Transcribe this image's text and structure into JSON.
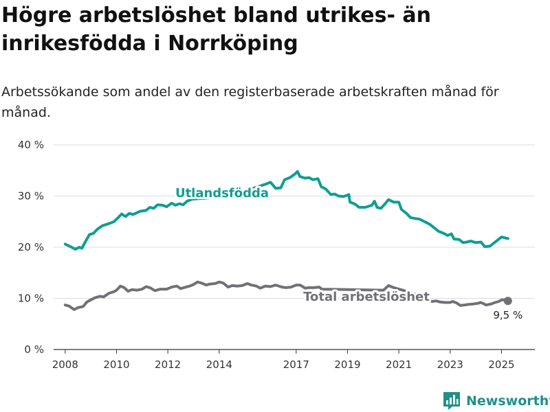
{
  "title": "Högre arbetslöshet bland utrikes- än inrikesfödda i Norrköping",
  "subtitle": "Arbetssökande som andel av den registerbaserade arbetskraften månad för månad.",
  "brand": {
    "name": "Newsworthy",
    "icon": "newsworthy-logo-icon"
  },
  "colors": {
    "utlandsfodda": "#0f9e92",
    "total": "#727076",
    "grid": "#dcdcdc",
    "axis": "#333333"
  },
  "chart_data": {
    "type": "line",
    "title": "Högre arbetslöshet bland utrikes- än inrikesfödda i Norrköping",
    "subtitle": "Arbetssökande som andel av den registerbaserade arbetskraften månad för månad.",
    "xlabel": "",
    "ylabel": "",
    "xlim": [
      2007.55,
      2026.3
    ],
    "ylim": [
      0,
      40
    ],
    "x_ticks": [
      "2008",
      "2010",
      "2012",
      "2014",
      "2017",
      "2019",
      "2021",
      "2023",
      "2025"
    ],
    "y_ticks": [
      "0 %",
      "10 %",
      "20 %",
      "30 %",
      "40 %"
    ],
    "grid": true,
    "legend": "direct labels",
    "series": [
      {
        "name": "Utlandsfödda",
        "color": "#0f9e92",
        "points": [
          [
            2008.0,
            20.6
          ],
          [
            2008.25,
            20.0
          ],
          [
            2008.4,
            19.6
          ],
          [
            2008.55,
            20.0
          ],
          [
            2008.65,
            19.8
          ],
          [
            2008.8,
            21.2
          ],
          [
            2008.95,
            22.5
          ],
          [
            2009.1,
            22.7
          ],
          [
            2009.25,
            23.5
          ],
          [
            2009.45,
            24.2
          ],
          [
            2009.7,
            24.6
          ],
          [
            2009.9,
            25.0
          ],
          [
            2010.05,
            25.7
          ],
          [
            2010.2,
            26.5
          ],
          [
            2010.35,
            26.0
          ],
          [
            2010.5,
            26.6
          ],
          [
            2010.65,
            26.4
          ],
          [
            2010.9,
            27.0
          ],
          [
            2011.15,
            27.2
          ],
          [
            2011.3,
            27.8
          ],
          [
            2011.45,
            27.6
          ],
          [
            2011.6,
            28.3
          ],
          [
            2011.8,
            28.2
          ],
          [
            2011.95,
            27.9
          ],
          [
            2012.15,
            28.6
          ],
          [
            2012.3,
            28.2
          ],
          [
            2012.45,
            28.5
          ],
          [
            2012.6,
            28.3
          ],
          [
            2012.75,
            29.0
          ],
          [
            2012.95,
            29.4
          ],
          [
            2013.5,
            29.6
          ],
          [
            2014.0,
            30.0
          ],
          [
            2015.0,
            31.0
          ],
          [
            2015.5,
            31.8
          ],
          [
            2015.85,
            32.4
          ],
          [
            2016.0,
            32.7
          ],
          [
            2016.2,
            31.5
          ],
          [
            2016.4,
            31.6
          ],
          [
            2016.55,
            33.2
          ],
          [
            2016.75,
            33.6
          ],
          [
            2016.95,
            34.3
          ],
          [
            2017.05,
            34.8
          ],
          [
            2017.15,
            33.8
          ],
          [
            2017.35,
            33.5
          ],
          [
            2017.5,
            33.6
          ],
          [
            2017.65,
            33.2
          ],
          [
            2017.85,
            33.4
          ],
          [
            2017.98,
            31.8
          ],
          [
            2018.15,
            31.4
          ],
          [
            2018.35,
            30.3
          ],
          [
            2018.5,
            30.4
          ],
          [
            2018.65,
            30.0
          ],
          [
            2018.85,
            29.9
          ],
          [
            2019.05,
            30.3
          ],
          [
            2019.1,
            28.8
          ],
          [
            2019.3,
            28.4
          ],
          [
            2019.45,
            27.8
          ],
          [
            2019.7,
            27.8
          ],
          [
            2019.95,
            28.2
          ],
          [
            2020.05,
            29.0
          ],
          [
            2020.15,
            27.8
          ],
          [
            2020.3,
            27.6
          ],
          [
            2020.45,
            28.4
          ],
          [
            2020.6,
            29.3
          ],
          [
            2020.8,
            28.8
          ],
          [
            2021.0,
            28.8
          ],
          [
            2021.1,
            27.4
          ],
          [
            2021.3,
            26.6
          ],
          [
            2021.45,
            25.8
          ],
          [
            2021.65,
            25.6
          ],
          [
            2021.8,
            25.5
          ],
          [
            2022.0,
            25.0
          ],
          [
            2022.2,
            24.5
          ],
          [
            2022.4,
            23.7
          ],
          [
            2022.55,
            23.1
          ],
          [
            2022.75,
            22.7
          ],
          [
            2022.9,
            22.3
          ],
          [
            2023.05,
            22.6
          ],
          [
            2023.15,
            21.6
          ],
          [
            2023.35,
            21.5
          ],
          [
            2023.5,
            20.9
          ],
          [
            2023.65,
            21.0
          ],
          [
            2023.8,
            21.2
          ],
          [
            2024.0,
            20.9
          ],
          [
            2024.2,
            21.0
          ],
          [
            2024.35,
            20.1
          ],
          [
            2024.55,
            20.2
          ],
          [
            2024.7,
            20.8
          ],
          [
            2024.85,
            21.4
          ],
          [
            2025.0,
            22.0
          ],
          [
            2025.15,
            21.8
          ],
          [
            2025.25,
            21.7
          ]
        ]
      },
      {
        "name": "Total arbetslöshet",
        "color": "#727076",
        "points": [
          [
            2008.0,
            8.7
          ],
          [
            2008.15,
            8.5
          ],
          [
            2008.35,
            7.8
          ],
          [
            2008.5,
            8.2
          ],
          [
            2008.7,
            8.4
          ],
          [
            2008.85,
            9.3
          ],
          [
            2009.0,
            9.7
          ],
          [
            2009.15,
            10.1
          ],
          [
            2009.35,
            10.4
          ],
          [
            2009.5,
            10.3
          ],
          [
            2009.7,
            11.0
          ],
          [
            2009.9,
            11.3
          ],
          [
            2010.0,
            11.6
          ],
          [
            2010.15,
            12.4
          ],
          [
            2010.3,
            12.1
          ],
          [
            2010.45,
            11.4
          ],
          [
            2010.6,
            11.7
          ],
          [
            2010.8,
            11.6
          ],
          [
            2011.0,
            11.8
          ],
          [
            2011.15,
            12.3
          ],
          [
            2011.3,
            12.1
          ],
          [
            2011.5,
            11.5
          ],
          [
            2011.7,
            11.8
          ],
          [
            2011.95,
            11.8
          ],
          [
            2012.15,
            12.2
          ],
          [
            2012.35,
            12.4
          ],
          [
            2012.5,
            11.9
          ],
          [
            2012.7,
            12.2
          ],
          [
            2012.85,
            12.4
          ],
          [
            2013.0,
            12.7
          ],
          [
            2013.15,
            13.2
          ],
          [
            2013.3,
            13.0
          ],
          [
            2013.5,
            12.6
          ],
          [
            2013.65,
            12.8
          ],
          [
            2013.85,
            12.9
          ],
          [
            2014.0,
            13.2
          ],
          [
            2014.15,
            13.0
          ],
          [
            2014.35,
            12.2
          ],
          [
            2014.5,
            12.5
          ],
          [
            2014.7,
            12.4
          ],
          [
            2014.9,
            12.5
          ],
          [
            2015.1,
            12.9
          ],
          [
            2015.25,
            12.6
          ],
          [
            2015.45,
            12.4
          ],
          [
            2015.6,
            12.0
          ],
          [
            2015.8,
            12.4
          ],
          [
            2016.0,
            12.3
          ],
          [
            2016.2,
            12.6
          ],
          [
            2016.45,
            12.2
          ],
          [
            2016.6,
            12.1
          ],
          [
            2016.8,
            12.2
          ],
          [
            2017.0,
            12.6
          ],
          [
            2017.15,
            12.6
          ],
          [
            2017.35,
            12.0
          ],
          [
            2017.5,
            12.1
          ],
          [
            2017.7,
            12.1
          ],
          [
            2017.9,
            12.2
          ],
          [
            2018.0,
            11.8
          ],
          [
            2020.4,
            11.6
          ],
          [
            2020.6,
            12.5
          ],
          [
            2020.8,
            12.1
          ],
          [
            2021.0,
            11.8
          ],
          [
            2021.15,
            11.6
          ],
          [
            2022.0,
            10.3
          ],
          [
            2022.1,
            9.6
          ],
          [
            2022.3,
            9.4
          ],
          [
            2022.45,
            9.5
          ],
          [
            2022.6,
            9.3
          ],
          [
            2022.8,
            9.2
          ],
          [
            2023.0,
            9.2
          ],
          [
            2023.1,
            9.4
          ],
          [
            2023.25,
            9.1
          ],
          [
            2023.4,
            8.6
          ],
          [
            2023.55,
            8.7
          ],
          [
            2023.7,
            8.8
          ],
          [
            2023.9,
            8.9
          ],
          [
            2024.05,
            9.0
          ],
          [
            2024.2,
            9.2
          ],
          [
            2024.4,
            8.7
          ],
          [
            2024.6,
            8.9
          ],
          [
            2024.75,
            9.2
          ],
          [
            2024.9,
            9.4
          ],
          [
            2025.0,
            9.7
          ],
          [
            2025.15,
            9.7
          ],
          [
            2025.25,
            9.5
          ]
        ]
      }
    ],
    "labels": [
      {
        "series": "Utlandsfödda",
        "text": "Utlandsfödda"
      },
      {
        "series": "Total arbetslöshet",
        "text": "Total arbetslöshet"
      }
    ],
    "end_label": {
      "series": "Total arbetslöshet",
      "x": 2025.25,
      "y": 9.5,
      "text": "9,5 %"
    }
  }
}
